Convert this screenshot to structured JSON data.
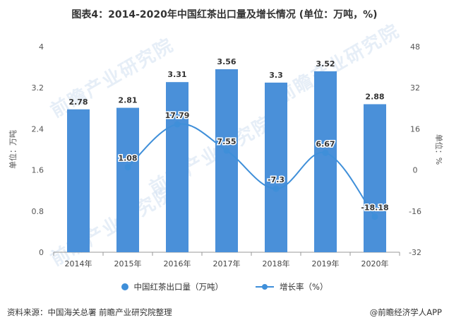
{
  "chart_data": {
    "type": "bar+line",
    "title": "图表4：2014-2020年中国红茶出口量及增长情况 (单位：万吨，%)",
    "categories": [
      "2014年",
      "2015年",
      "2016年",
      "2017年",
      "2018年",
      "2019年",
      "2020年"
    ],
    "series": [
      {
        "name": "中国红茶出口量（万吨）",
        "type": "bar",
        "axis": "left",
        "values": [
          2.78,
          2.81,
          3.31,
          3.56,
          3.3,
          3.52,
          2.88
        ],
        "labels": [
          "2.78",
          "2.81",
          "3.31",
          "3.56",
          "3.3",
          "3.52",
          "2.88"
        ]
      },
      {
        "name": "增长率（%）",
        "type": "line",
        "axis": "right",
        "values": [
          null,
          1.08,
          17.79,
          7.55,
          -7.3,
          6.67,
          -18.18
        ],
        "labels": [
          "",
          "1.08",
          "17.79",
          "7.55",
          "-7.3",
          "6.67",
          "-18.18"
        ]
      }
    ],
    "ylabel": "单位：万吨",
    "y2label": "单位：%",
    "ylim": [
      0,
      4
    ],
    "y2lim": [
      -32,
      48
    ],
    "yticks": [
      "0",
      "0.8",
      "1.6",
      "2.4",
      "3.2",
      "4"
    ],
    "y2ticks": [
      "-32",
      "-16",
      "0",
      "16",
      "32",
      "48"
    ],
    "colors": {
      "bar": "#4a90d9",
      "line": "#3f8fd9"
    },
    "legend": "bottom",
    "grid": false
  },
  "legend_items": {
    "bar": "中国红茶出口量（万吨）",
    "line": "增长率（%）"
  },
  "footer": {
    "source": "资料来源：中国海关总署 前瞻产业研究院整理",
    "brand": "@前瞻经济学人APP"
  },
  "watermark": "前瞻产业研究院"
}
